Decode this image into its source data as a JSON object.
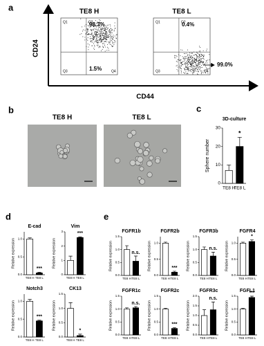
{
  "panel_labels": [
    "a",
    "b",
    "c",
    "d",
    "e"
  ],
  "flow": {
    "y_label": "CD24",
    "x_label": "CD44",
    "plots": [
      {
        "title": "TE8 H",
        "quadrants": [
          "Q1",
          "Q2",
          "Q3",
          "Q4"
        ],
        "percent_labels": [
          "98.3%",
          "1.5%"
        ]
      },
      {
        "title": "TE8 L",
        "quadrants": [
          "Q1",
          "Q2",
          "Q3",
          "Q4"
        ],
        "percent_labels": [
          "0.4%",
          "99.0%"
        ]
      }
    ]
  },
  "micrographs": {
    "titles": [
      "TE8 H",
      "TE8 L"
    ]
  },
  "chart_data": [
    {
      "type": "bar",
      "title": "3D-culture",
      "ylabel": "Sphere number",
      "categories": [
        "TE8 H",
        "TE8 L"
      ],
      "values": [
        7,
        20
      ],
      "errors": [
        3,
        5
      ],
      "colors": [
        "#ffffff",
        "#000000"
      ],
      "ylim": [
        0,
        30
      ],
      "yticks": [
        0,
        10,
        20,
        30
      ],
      "annotation": "*"
    },
    {
      "type": "bar",
      "title": "E-cad",
      "ylabel": "Relative expression",
      "categories": [
        "TE8 H",
        "TE8 L"
      ],
      "values": [
        1.0,
        0.05
      ],
      "errors": [
        0.03,
        0.02
      ],
      "colors": [
        "#ffffff",
        "#000000"
      ],
      "ylim": [
        0,
        1.2
      ],
      "yticks": [
        {
          "value": 0,
          "label": "0.0"
        },
        {
          "value": 0.5,
          "label": "0.5"
        },
        {
          "value": 1,
          "label": "1.0"
        }
      ],
      "annotation": "***"
    },
    {
      "type": "bar",
      "title": "Vim",
      "ylabel": "Relative expression",
      "categories": [
        "TE8 H",
        "TE8 L"
      ],
      "values": [
        1.0,
        2.6
      ],
      "errors": [
        0.3,
        0.05
      ],
      "colors": [
        "#ffffff",
        "#000000"
      ],
      "ylim": [
        0,
        3
      ],
      "yticks": [
        0,
        1,
        2,
        3
      ],
      "annotation": "***"
    },
    {
      "type": "bar",
      "title": "Notch3",
      "ylabel": "Relative expression",
      "categories": [
        "TE8 H",
        "TE8 L"
      ],
      "values": [
        1.0,
        0.45
      ],
      "errors": [
        0.05,
        0.02
      ],
      "colors": [
        "#ffffff",
        "#000000"
      ],
      "ylim": [
        0,
        1.2
      ],
      "yticks": [
        {
          "value": 0,
          "label": "0.0"
        },
        {
          "value": 0.5,
          "label": "0.5"
        },
        {
          "value": 1,
          "label": "1.0"
        }
      ],
      "annotation": "***"
    },
    {
      "type": "bar",
      "title": "CK13",
      "ylabel": "Relative expression",
      "categories": [
        "TE8 H",
        "TE8 L"
      ],
      "values": [
        1.0,
        0.05
      ],
      "errors": [
        0.2,
        0.05
      ],
      "colors": [
        "#ffffff",
        "#000000"
      ],
      "ylim": [
        0,
        1.5
      ],
      "yticks": [
        {
          "value": 0,
          "label": "0.0"
        },
        {
          "value": 0.5,
          "label": "0.5"
        },
        {
          "value": 1,
          "label": "1.0"
        },
        {
          "value": 1.5,
          "label": "1.5"
        }
      ],
      "annotation": "*"
    },
    {
      "type": "bar",
      "title": "FGFR1b",
      "ylabel": "Relative expression",
      "categories": [
        "TE8 H",
        "TE8 L"
      ],
      "values": [
        1.0,
        0.55
      ],
      "errors": [
        0.15,
        0.2
      ],
      "colors": [
        "#ffffff",
        "#000000"
      ],
      "ylim": [
        0,
        1.5
      ],
      "yticks": [
        {
          "value": 0,
          "label": "0.0"
        },
        {
          "value": 0.5,
          "label": "0.5"
        },
        {
          "value": 1,
          "label": "1.0"
        },
        {
          "value": 1.5,
          "label": "1.5"
        }
      ],
      "annotation": "n.s."
    },
    {
      "type": "bar",
      "title": "FGFR2b",
      "ylabel": "Relative expression",
      "categories": [
        "TE8 H",
        "TE8 L"
      ],
      "values": [
        1.0,
        0.1
      ],
      "errors": [
        0.03,
        0.03
      ],
      "colors": [
        "#ffffff",
        "#000000"
      ],
      "ylim": [
        0,
        1.2
      ],
      "yticks": [
        {
          "value": 0,
          "label": "0.0"
        },
        {
          "value": 0.5,
          "label": "0.5"
        },
        {
          "value": 1,
          "label": "1.0"
        }
      ],
      "annotation": "***"
    },
    {
      "type": "bar",
      "title": "FGFR3b",
      "ylabel": "Relative expression",
      "categories": [
        "TE8 H",
        "TE8 L"
      ],
      "values": [
        1.0,
        0.75
      ],
      "errors": [
        0.1,
        0.15
      ],
      "colors": [
        "#ffffff",
        "#000000"
      ],
      "ylim": [
        0,
        1.5
      ],
      "yticks": [
        {
          "value": 0,
          "label": "0.0"
        },
        {
          "value": 0.5,
          "label": "0.5"
        },
        {
          "value": 1,
          "label": "1.0"
        },
        {
          "value": 1.5,
          "label": "1.5"
        }
      ],
      "annotation": "n.s."
    },
    {
      "type": "bar",
      "title": "FGFR4",
      "ylabel": "Relative expression",
      "categories": [
        "TE8 H",
        "TE8 L"
      ],
      "values": [
        1.0,
        1.05
      ],
      "errors": [
        0.03,
        0.05
      ],
      "colors": [
        "#ffffff",
        "#000000"
      ],
      "ylim": [
        0,
        1.2
      ],
      "yticks": [
        {
          "value": 0,
          "label": "0.0"
        },
        {
          "value": 0.5,
          "label": "0.5"
        },
        {
          "value": 1,
          "label": "1.0"
        }
      ],
      "annotation": "*"
    },
    {
      "type": "bar",
      "title": "FGFR1c",
      "ylabel": "Relative expression",
      "categories": [
        "TE8 H",
        "TE8 L"
      ],
      "values": [
        1.0,
        1.05
      ],
      "errors": [
        0.05,
        0.05
      ],
      "colors": [
        "#ffffff",
        "#000000"
      ],
      "ylim": [
        0,
        1.5
      ],
      "yticks": [
        {
          "value": 0,
          "label": "0.0"
        },
        {
          "value": 0.5,
          "label": "0.5"
        },
        {
          "value": 1,
          "label": "1.0"
        },
        {
          "value": 1.5,
          "label": "1.5"
        }
      ],
      "annotation": "n.s."
    },
    {
      "type": "bar",
      "title": "FGFR2c",
      "ylabel": "Relative expression",
      "categories": [
        "TE8 H",
        "TE8 L"
      ],
      "values": [
        1.0,
        0.25
      ],
      "errors": [
        0.03,
        0.03
      ],
      "colors": [
        "#ffffff",
        "#000000"
      ],
      "ylim": [
        0,
        1.5
      ],
      "yticks": [
        {
          "value": 0,
          "label": "0.0"
        },
        {
          "value": 0.5,
          "label": "0.5"
        },
        {
          "value": 1,
          "label": "1.0"
        },
        {
          "value": 1.5,
          "label": "1.5"
        }
      ],
      "annotation": "***"
    },
    {
      "type": "bar",
      "title": "FGFR3c",
      "ylabel": "Relative expression",
      "categories": [
        "TE8 H",
        "TE8 L"
      ],
      "values": [
        1.0,
        1.3
      ],
      "errors": [
        0.3,
        0.4
      ],
      "colors": [
        "#ffffff",
        "#000000"
      ],
      "ylim": [
        0,
        2
      ],
      "yticks": [
        {
          "value": 0,
          "label": "0.0"
        },
        {
          "value": 0.5,
          "label": "0.5"
        },
        {
          "value": 1,
          "label": "1.0"
        },
        {
          "value": 1.5,
          "label": "1.5"
        },
        {
          "value": 2,
          "label": "2.0"
        }
      ],
      "annotation": "n.s."
    },
    {
      "type": "bar",
      "title": "FGFL1",
      "ylabel": "Relative expression",
      "categories": [
        "TE8 H",
        "TE8 L"
      ],
      "values": [
        1.0,
        1.45
      ],
      "errors": [
        0.03,
        0.05
      ],
      "colors": [
        "#ffffff",
        "#000000"
      ],
      "ylim": [
        0,
        1.5
      ],
      "yticks": [
        {
          "value": 0,
          "label": "0.0"
        },
        {
          "value": 0.5,
          "label": "0.5"
        },
        {
          "value": 1,
          "label": "1.0"
        },
        {
          "value": 1.5,
          "label": "1.5"
        }
      ],
      "annotation": "***"
    }
  ]
}
